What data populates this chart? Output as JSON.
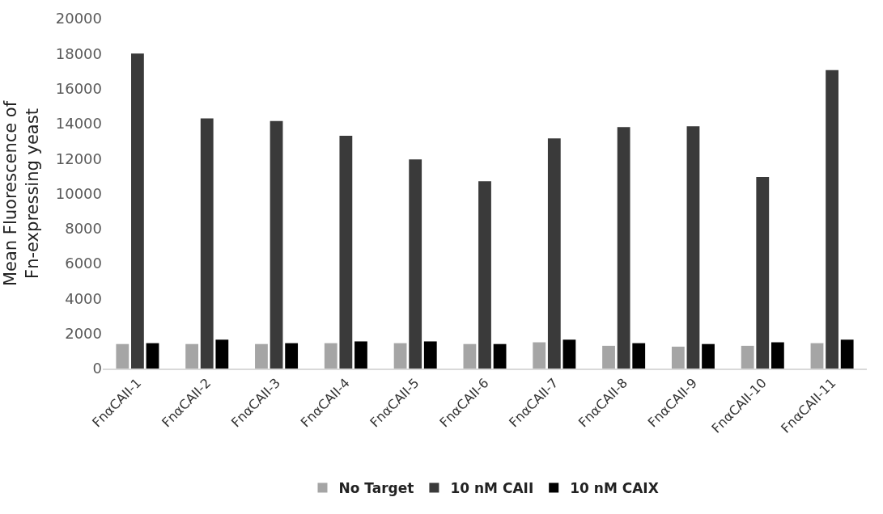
{
  "chart_data": {
    "type": "bar",
    "ylabel": "Mean Fluorescence of\nFn-expressing yeast",
    "categories": [
      "FnαCAII-1",
      "FnαCAII-2",
      "FnαCAII-3",
      "FnαCAII-4",
      "FnαCAII-5",
      "FnαCAII-6",
      "FnαCAII-7",
      "FnαCAII-8",
      "FnαCAII-9",
      "FnαCAII-10",
      "FnαCAII-11"
    ],
    "series": [
      {
        "name": "No Target",
        "color": "#a5a5a5",
        "values": [
          1400,
          1400,
          1400,
          1450,
          1450,
          1400,
          1500,
          1300,
          1250,
          1300,
          1450
        ]
      },
      {
        "name": "10 nM CAII",
        "color": "#3a3a3a",
        "values": [
          18000,
          14300,
          14150,
          13300,
          11950,
          10700,
          13150,
          13800,
          13850,
          10950,
          17050
        ]
      },
      {
        "name": "10 nM CAIX",
        "color": "#000000",
        "values": [
          1450,
          1650,
          1450,
          1550,
          1550,
          1400,
          1650,
          1450,
          1400,
          1500,
          1650
        ]
      }
    ],
    "ylim": [
      0,
      20000
    ],
    "yticks": [
      0,
      2000,
      4000,
      6000,
      8000,
      10000,
      12000,
      14000,
      16000,
      18000,
      20000
    ],
    "legend": "bottom"
  }
}
